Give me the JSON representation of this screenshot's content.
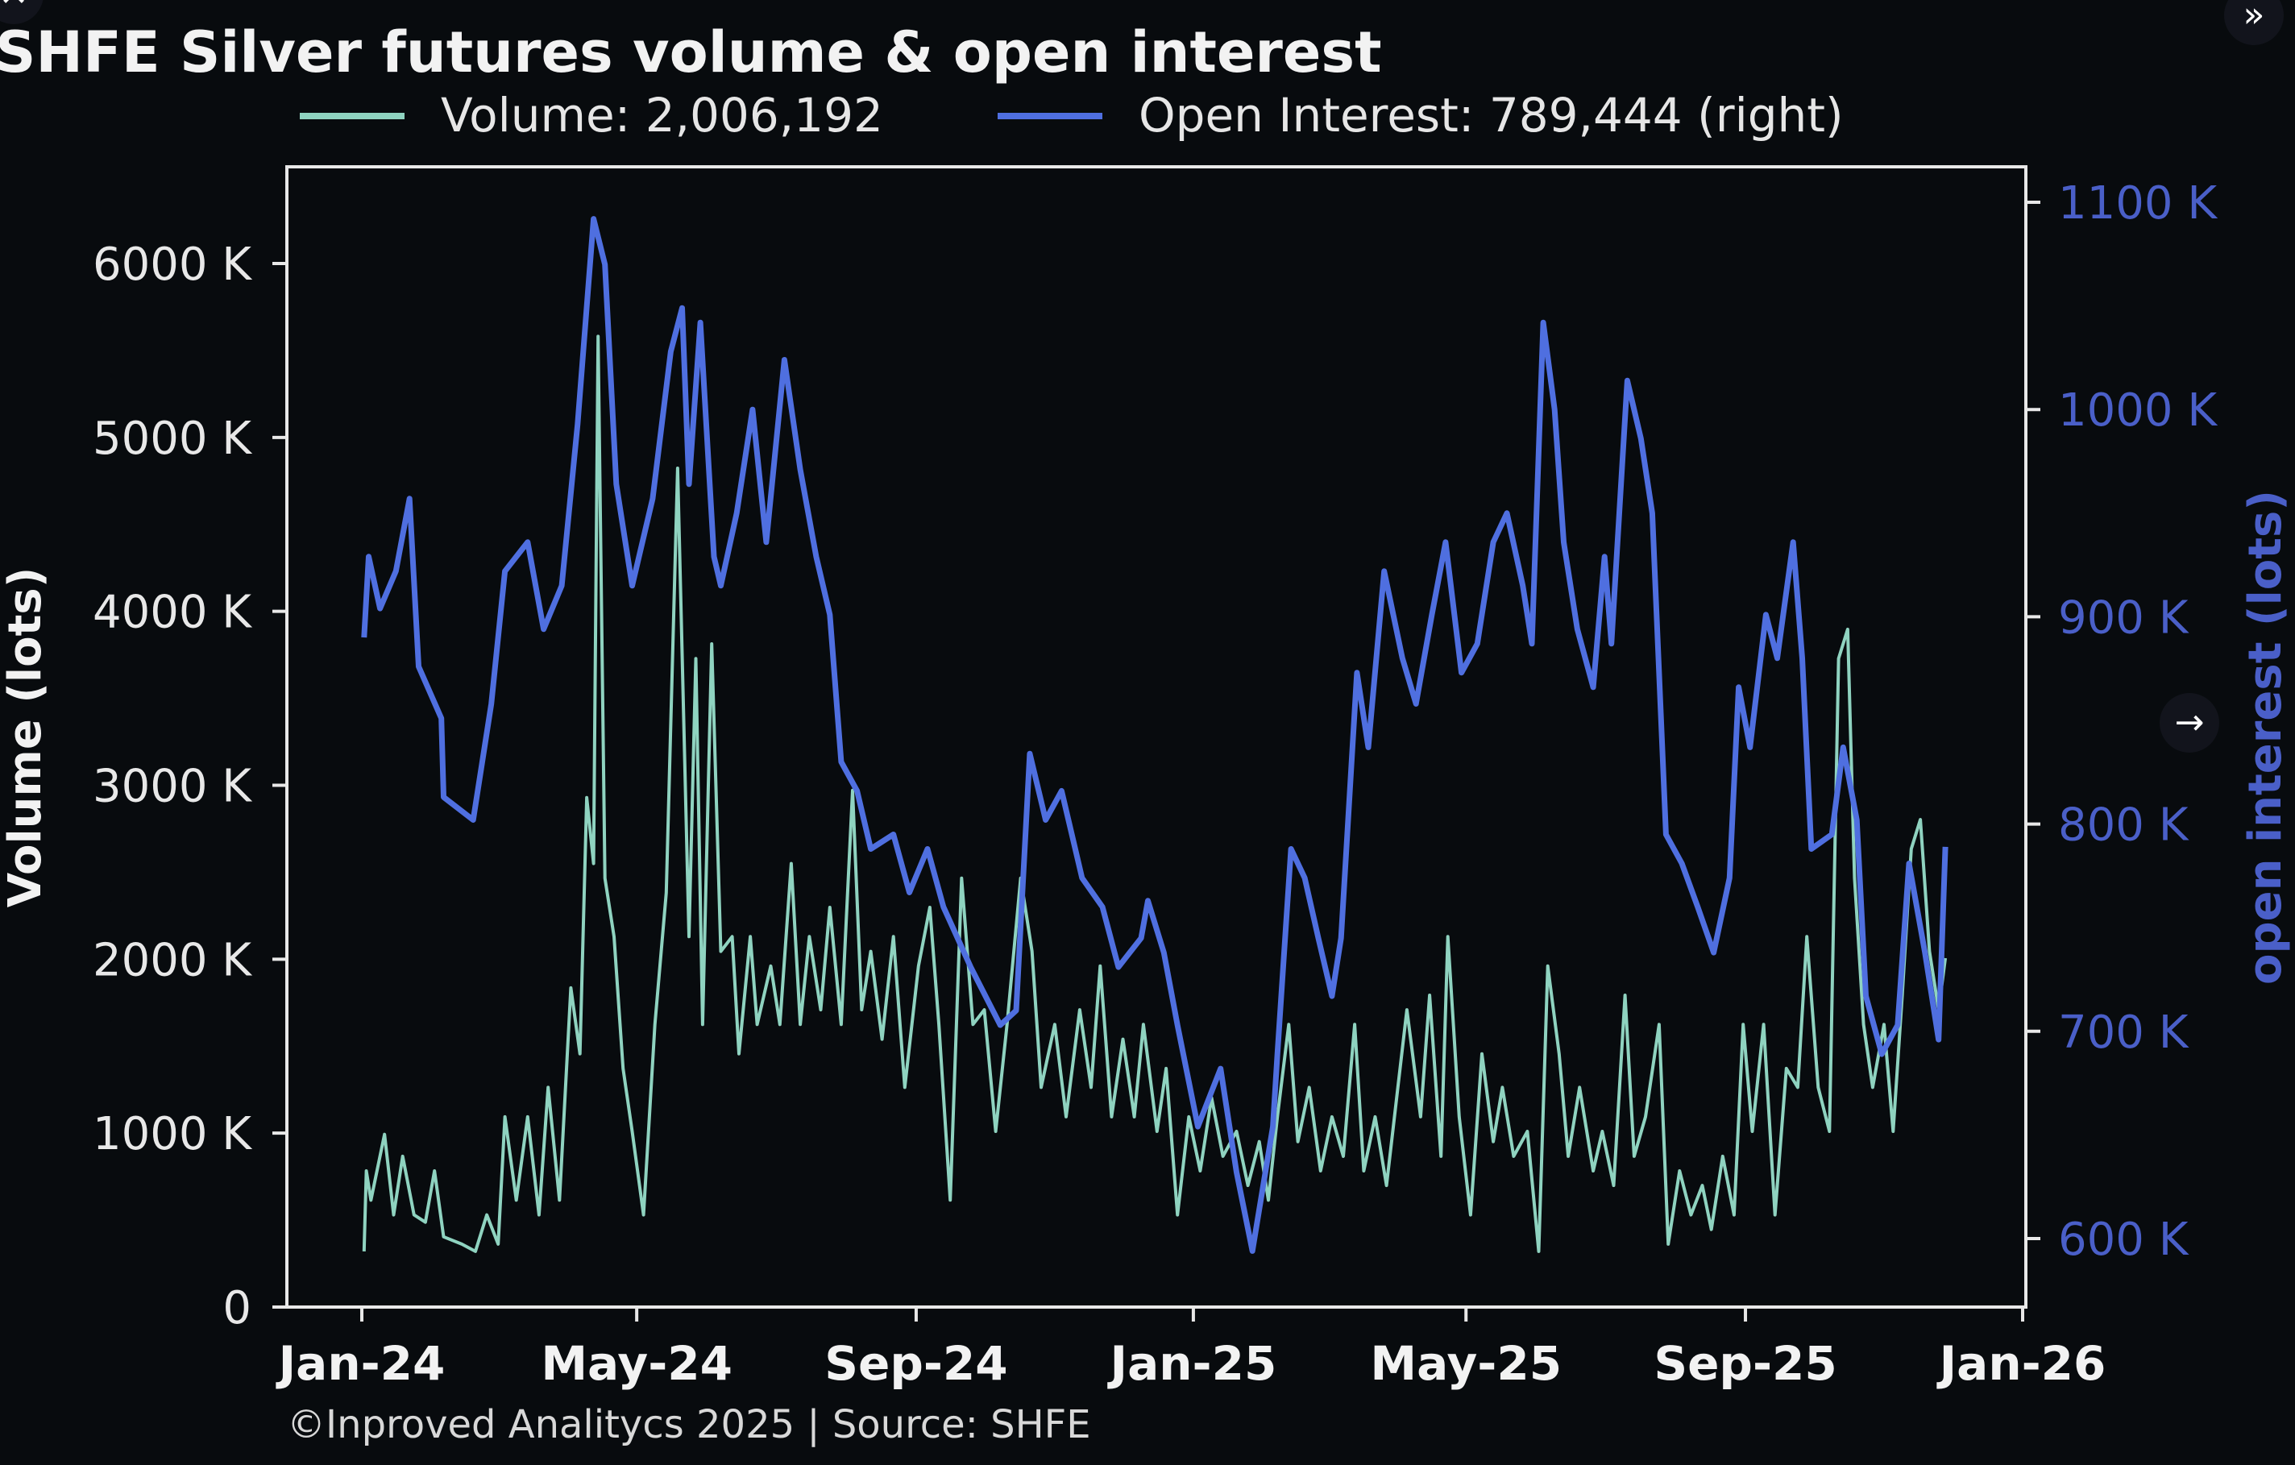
{
  "overlay": {
    "close_icon": "close-icon",
    "next_icon": "double-chevron-right-icon",
    "arrow_icon": "arrow-right-icon"
  },
  "colors": {
    "background": "#080b0e",
    "volume": "#8fd3c0",
    "open_interest": "#4f6fe0",
    "right_axis": "#4a5fc8"
  },
  "chart_data": {
    "type": "line",
    "title": "SHFE Silver futures volume & open interest",
    "footer": "©Inproved Analitycs 2025 | Source: SHFE",
    "legend_placement": "top",
    "grid": false,
    "x_axis": {
      "type": "date",
      "range": [
        "2024-01-01",
        "2026-01-01"
      ],
      "ticks": [
        "Jan-24",
        "May-24",
        "Sep-24",
        "Jan-25",
        "May-25",
        "Sep-25",
        "Jan-26"
      ],
      "tick_dates": [
        "2024-01-01",
        "2024-05-01",
        "2024-09-01",
        "2025-01-01",
        "2025-05-01",
        "2025-09-01",
        "2026-01-01"
      ]
    },
    "y_left": {
      "label": "Volume (lots)",
      "unit": "K lots",
      "range": [
        0,
        6600
      ],
      "ticks": [
        "0",
        "1000 K",
        "2000 K",
        "3000 K",
        "4000 K",
        "5000 K",
        "6000 K"
      ],
      "tick_values": [
        0,
        1000,
        2000,
        3000,
        4000,
        5000,
        6000
      ]
    },
    "y_right": {
      "label": "open interest (lots)",
      "unit": "K lots",
      "range": [
        567,
        1117
      ],
      "ticks": [
        "600 K",
        "700 K",
        "800 K",
        "900 K",
        "1000 K",
        "1100 K"
      ],
      "tick_values": [
        600,
        700,
        800,
        900,
        1000,
        1100
      ]
    },
    "series": [
      {
        "name": "Volume: 2,006,192",
        "axis": "left",
        "dates": [
          "2024-01-02",
          "2024-01-03",
          "2024-01-05",
          "2024-01-11",
          "2024-01-15",
          "2024-01-19",
          "2024-01-24",
          "2024-01-29",
          "2024-02-02",
          "2024-02-06",
          "2024-02-14",
          "2024-02-20",
          "2024-02-25",
          "2024-03-01",
          "2024-03-04",
          "2024-03-09",
          "2024-03-14",
          "2024-03-19",
          "2024-03-23",
          "2024-03-28",
          "2024-04-02",
          "2024-04-06",
          "2024-04-09",
          "2024-04-12",
          "2024-04-14",
          "2024-04-17",
          "2024-04-21",
          "2024-04-25",
          "2024-04-29",
          "2024-05-04",
          "2024-05-09",
          "2024-05-14",
          "2024-05-19",
          "2024-05-24",
          "2024-05-27",
          "2024-05-30",
          "2024-06-03",
          "2024-06-07",
          "2024-06-12",
          "2024-06-15",
          "2024-06-20",
          "2024-06-23",
          "2024-06-29",
          "2024-07-03",
          "2024-07-08",
          "2024-07-12",
          "2024-07-16",
          "2024-07-21",
          "2024-07-25",
          "2024-07-30",
          "2024-08-04",
          "2024-08-08",
          "2024-08-12",
          "2024-08-17",
          "2024-08-22",
          "2024-08-27",
          "2024-09-02",
          "2024-09-07",
          "2024-09-11",
          "2024-09-16",
          "2024-09-21",
          "2024-09-26",
          "2024-10-01",
          "2024-10-06",
          "2024-10-11",
          "2024-10-17",
          "2024-10-22",
          "2024-10-26",
          "2024-11-01",
          "2024-11-06",
          "2024-11-12",
          "2024-11-17",
          "2024-11-21",
          "2024-11-26",
          "2024-12-01",
          "2024-12-06",
          "2024-12-10",
          "2024-12-16",
          "2024-12-20",
          "2024-12-25",
          "2024-12-30",
          "2025-01-04",
          "2025-01-09",
          "2025-01-14",
          "2025-01-20",
          "2025-01-25",
          "2025-01-30",
          "2025-02-03",
          "2025-02-07",
          "2025-02-12",
          "2025-02-16",
          "2025-02-21",
          "2025-02-26",
          "2025-03-03",
          "2025-03-08",
          "2025-03-13",
          "2025-03-17",
          "2025-03-22",
          "2025-03-27",
          "2025-04-01",
          "2025-04-05",
          "2025-04-11",
          "2025-04-15",
          "2025-04-20",
          "2025-04-23",
          "2025-04-28",
          "2025-05-03",
          "2025-05-08",
          "2025-05-13",
          "2025-05-17",
          "2025-05-22",
          "2025-05-28",
          "2025-06-02",
          "2025-06-06",
          "2025-06-11",
          "2025-06-15",
          "2025-06-20",
          "2025-06-26",
          "2025-06-30",
          "2025-07-05",
          "2025-07-10",
          "2025-07-14",
          "2025-07-19",
          "2025-07-25",
          "2025-07-29",
          "2025-08-03",
          "2025-08-08",
          "2025-08-13",
          "2025-08-17",
          "2025-08-22",
          "2025-08-27",
          "2025-08-31",
          "2025-09-04",
          "2025-09-09",
          "2025-09-14",
          "2025-09-19",
          "2025-09-24",
          "2025-09-28",
          "2025-10-03",
          "2025-10-08",
          "2025-10-12",
          "2025-10-16",
          "2025-10-19",
          "2025-10-23",
          "2025-10-27",
          "2025-11-01",
          "2025-11-05",
          "2025-11-09",
          "2025-11-13",
          "2025-11-17",
          "2025-11-21",
          "2025-11-25",
          "2025-11-28"
        ],
        "values": [
          320,
          783,
          615,
          993,
          530,
          867,
          530,
          488,
          783,
          404,
          362,
          320,
          530,
          362,
          1094,
          615,
          1094,
          530,
          1263,
          615,
          1835,
          1456,
          2929,
          2550,
          5581,
          2466,
          2130,
          1372,
          1010,
          530,
          1625,
          2382,
          4823,
          2130,
          3729,
          1625,
          3813,
          2045,
          2130,
          1456,
          2130,
          1625,
          1961,
          1625,
          2550,
          1625,
          2130,
          1709,
          2298,
          1625,
          2971,
          1709,
          2045,
          1540,
          2130,
          1263,
          1961,
          2298,
          1625,
          615,
          2466,
          1625,
          1709,
          1010,
          1625,
          2466,
          2045,
          1263,
          1625,
          1094,
          1709,
          1263,
          1961,
          1094,
          1540,
          1094,
          1625,
          1010,
          1372,
          530,
          1094,
          783,
          1204,
          867,
          1010,
          699,
          951,
          615,
          1094,
          1625,
          951,
          1263,
          783,
          1094,
          867,
          1625,
          783,
          1094,
          699,
          1263,
          1709,
          1094,
          1793,
          867,
          2130,
          1094,
          530,
          1456,
          951,
          1263,
          867,
          1010,
          320,
          1961,
          1456,
          867,
          1263,
          783,
          1010,
          699,
          1793,
          867,
          1094,
          1625,
          362,
          783,
          530,
          699,
          446,
          867,
          530,
          1625,
          1010,
          1625,
          530,
          1372,
          1263,
          2130,
          1263,
          1010,
          3729,
          3897,
          2466,
          1625,
          1263,
          1625,
          1010,
          1793,
          2634,
          2803,
          2045,
          1709,
          2006
        ]
      },
      {
        "name": "Open Interest: 789,444 (right)",
        "axis": "right",
        "dates": [
          "2024-01-02",
          "2024-01-04",
          "2024-01-09",
          "2024-01-16",
          "2024-01-22",
          "2024-01-26",
          "2024-02-05",
          "2024-02-06",
          "2024-02-19",
          "2024-02-27",
          "2024-03-04",
          "2024-03-14",
          "2024-03-21",
          "2024-03-29",
          "2024-04-05",
          "2024-04-12",
          "2024-04-17",
          "2024-04-22",
          "2024-04-29",
          "2024-05-08",
          "2024-05-16",
          "2024-05-21",
          "2024-05-24",
          "2024-05-29",
          "2024-06-04",
          "2024-06-07",
          "2024-06-14",
          "2024-06-21",
          "2024-06-27",
          "2024-07-05",
          "2024-07-12",
          "2024-07-19",
          "2024-07-25",
          "2024-07-30",
          "2024-08-06",
          "2024-08-12",
          "2024-08-22",
          "2024-08-29",
          "2024-09-06",
          "2024-09-13",
          "2024-09-25",
          "2024-10-08",
          "2024-10-15",
          "2024-10-21",
          "2024-10-28",
          "2024-11-04",
          "2024-11-13",
          "2024-11-22",
          "2024-11-29",
          "2024-12-09",
          "2024-12-12",
          "2024-12-19",
          "2024-12-25",
          "2025-01-03",
          "2025-01-13",
          "2025-01-20",
          "2025-01-27",
          "2025-02-05",
          "2025-02-07",
          "2025-02-13",
          "2025-02-19",
          "2025-02-25",
          "2025-03-03",
          "2025-03-07",
          "2025-03-14",
          "2025-03-19",
          "2025-03-26",
          "2025-04-03",
          "2025-04-09",
          "2025-04-16",
          "2025-04-22",
          "2025-04-29",
          "2025-05-06",
          "2025-05-13",
          "2025-05-19",
          "2025-05-26",
          "2025-05-30",
          "2025-06-04",
          "2025-06-09",
          "2025-06-13",
          "2025-06-19",
          "2025-06-26",
          "2025-07-01",
          "2025-07-04",
          "2025-07-11",
          "2025-07-17",
          "2025-07-22",
          "2025-07-28",
          "2025-08-04",
          "2025-08-11",
          "2025-08-18",
          "2025-08-25",
          "2025-08-29",
          "2025-09-03",
          "2025-09-10",
          "2025-09-15",
          "2025-09-22",
          "2025-09-26",
          "2025-09-30",
          "2025-10-09",
          "2025-10-14",
          "2025-10-20",
          "2025-10-24",
          "2025-10-31",
          "2025-11-07",
          "2025-11-12",
          "2025-11-19",
          "2025-11-25",
          "2025-11-28"
        ],
        "values": [
          890,
          929,
          904,
          922,
          957,
          876,
          851,
          813,
          802,
          858,
          922,
          936,
          894,
          915,
          993,
          1092,
          1070,
          964,
          915,
          957,
          1028,
          1049,
          964,
          1042,
          929,
          915,
          950,
          1000,
          936,
          1024,
          971,
          929,
          901,
          830,
          816,
          788,
          795,
          767,
          788,
          760,
          731,
          703,
          710,
          834,
          802,
          816,
          774,
          760,
          731,
          745,
          763,
          738,
          703,
          654,
          682,
          632,
          594,
          654,
          689,
          788,
          774,
          745,
          717,
          745,
          873,
          837,
          922,
          880,
          858,
          901,
          936,
          873,
          887,
          936,
          950,
          915,
          887,
          1042,
          1000,
          936,
          894,
          866,
          929,
          887,
          1014,
          986,
          950,
          795,
          781,
          760,
          738,
          774,
          866,
          837,
          901,
          880,
          936,
          880,
          788,
          795,
          837,
          802,
          717,
          689,
          703,
          781,
          738,
          696,
          789
        ]
      }
    ]
  }
}
